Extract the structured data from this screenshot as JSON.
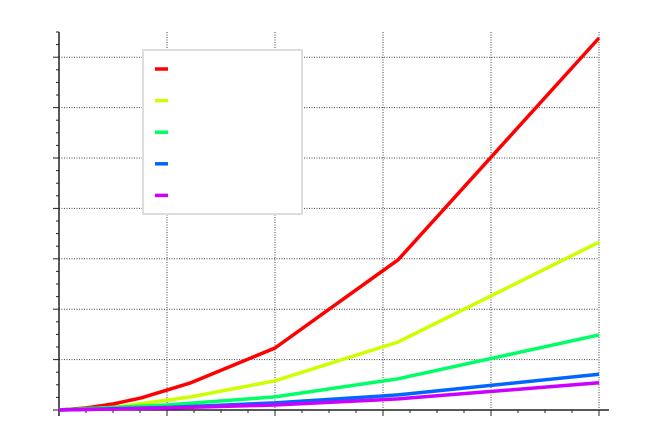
{
  "chart_data": {
    "type": "line",
    "title": "",
    "xlabel": "",
    "ylabel": "",
    "xlim": [
      0,
      5
    ],
    "ylim": [
      0,
      7.5
    ],
    "x_major_ticks": [
      0,
      1,
      2,
      3,
      4,
      5
    ],
    "y_major_ticks": [
      0,
      1,
      2,
      3,
      4,
      5,
      6,
      7
    ],
    "tick_labels_shown": false,
    "grid": true,
    "legend": {
      "placement": "top-left",
      "labels_shown": false
    },
    "series": [
      {
        "color": "#ff0000",
        "points": [
          [
            0,
            0
          ],
          [
            0.25,
            0.04
          ],
          [
            0.5,
            0.12
          ],
          [
            0.76,
            0.24
          ],
          [
            1.22,
            0.54
          ],
          [
            2.0,
            1.23
          ],
          [
            3.14,
            2.98
          ],
          [
            5,
            7.38
          ]
        ]
      },
      {
        "color": "#ccff00",
        "points": [
          [
            0,
            0
          ],
          [
            0.5,
            0.05
          ],
          [
            1.22,
            0.26
          ],
          [
            2.0,
            0.58
          ],
          [
            3.14,
            1.35
          ],
          [
            5,
            3.33
          ]
        ]
      },
      {
        "color": "#00ff66",
        "points": [
          [
            0,
            0
          ],
          [
            1.0,
            0.1
          ],
          [
            2.0,
            0.26
          ],
          [
            3.14,
            0.62
          ],
          [
            5,
            1.49
          ]
        ]
      },
      {
        "color": "#0066ff",
        "points": [
          [
            0,
            0
          ],
          [
            1.0,
            0.05
          ],
          [
            2.0,
            0.14
          ],
          [
            3.14,
            0.3
          ],
          [
            5,
            0.71
          ]
        ]
      },
      {
        "color": "#cc00ff",
        "points": [
          [
            0,
            0
          ],
          [
            1.0,
            0.04
          ],
          [
            2.0,
            0.1
          ],
          [
            3.14,
            0.22
          ],
          [
            5,
            0.54
          ]
        ]
      }
    ]
  }
}
